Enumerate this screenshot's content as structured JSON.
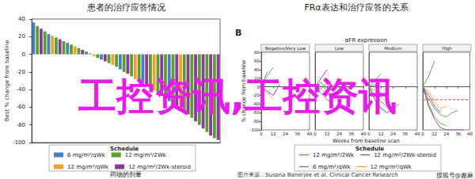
{
  "chart_data": [
    {
      "type": "bar",
      "title": "患者的治疗应答情况",
      "ylabel": "Best % change from baseline",
      "xlabel": "药物的剂量",
      "annotations": [
        "Schedule"
      ],
      "categories": [
        null,
        null,
        null,
        null,
        null,
        null,
        null,
        null,
        null,
        null,
        null,
        null,
        null,
        null,
        null,
        null,
        null,
        null,
        null,
        null,
        null,
        null,
        null,
        null,
        null,
        null,
        null,
        null,
        null,
        null,
        null,
        null,
        null,
        null,
        null,
        null,
        null,
        null,
        null,
        null,
        null,
        null,
        null,
        null,
        null,
        null,
        null,
        null,
        null,
        null
      ],
      "series": [
        {
          "name": "6 mg/m²/qWk",
          "color": "#4a7ebb",
          "values": [
            36,
            null,
            null,
            null,
            23,
            null,
            null,
            null,
            null,
            13,
            null,
            null,
            null,
            null,
            3,
            null,
            null,
            null,
            -6,
            null,
            null,
            null,
            null,
            -17,
            null,
            null,
            null,
            null,
            null,
            -33,
            null,
            null,
            null,
            null,
            null,
            null,
            -53,
            null,
            null,
            null,
            null,
            null,
            null,
            null,
            null,
            null,
            null,
            null,
            null,
            null
          ]
        },
        {
          "name": "12 mg/m²/2Wk",
          "color": "#5b9e2f",
          "values": [
            null,
            32,
            null,
            26,
            null,
            null,
            19,
            null,
            15,
            null,
            11,
            null,
            7,
            null,
            null,
            1,
            null,
            -4,
            null,
            null,
            -10,
            null,
            -14,
            null,
            -20,
            null,
            -25,
            null,
            -30,
            null,
            null,
            -38,
            null,
            -44,
            null,
            -50,
            null,
            -56,
            null,
            null,
            -65,
            null,
            -72,
            null,
            -80,
            null,
            -88,
            null,
            -95,
            null
          ]
        },
        {
          "name": "12 mg/m²/qWk",
          "color": "#f0a030",
          "values": [
            null,
            null,
            null,
            null,
            null,
            21,
            null,
            null,
            null,
            null,
            null,
            9,
            null,
            null,
            null,
            null,
            -2,
            null,
            null,
            null,
            null,
            -12,
            null,
            null,
            null,
            null,
            null,
            -28,
            null,
            null,
            null,
            null,
            -41,
            null,
            null,
            null,
            null,
            null,
            null,
            -62,
            null,
            null,
            null,
            null,
            null,
            null,
            null,
            null,
            null,
            null
          ]
        },
        {
          "name": "12 mg/m²/2Wk-steroid",
          "color": "#8a3a9a",
          "values": [
            null,
            null,
            29,
            null,
            null,
            null,
            null,
            17,
            null,
            null,
            null,
            null,
            null,
            5,
            null,
            null,
            null,
            null,
            null,
            -8,
            null,
            null,
            null,
            null,
            null,
            -22,
            null,
            null,
            null,
            null,
            -36,
            null,
            null,
            null,
            -47,
            null,
            null,
            null,
            -59,
            null,
            null,
            -68,
            null,
            -76,
            null,
            -84,
            null,
            -92,
            null,
            -97
          ]
        }
      ],
      "ylim": [
        -100,
        40
      ],
      "yticks": [
        -100,
        -80,
        -60,
        -40,
        -20,
        0,
        20,
        40
      ],
      "grid": false,
      "tick_labels": "y",
      "legend": "bottom"
    },
    {
      "type": "line",
      "title": "FRα表达和治疗应答的关系",
      "subtitle": "αFR expression",
      "xlabel": "Weeks from baseline scan",
      "ylabel": "% change from baseline",
      "annotations": [
        "B",
        "Schedule"
      ],
      "xlim": [
        0,
        48
      ],
      "xticks": [
        0,
        12,
        24,
        36,
        48
      ],
      "ylim": [
        -100,
        80
      ],
      "yticks": [
        -100,
        -80,
        -60,
        -40,
        -20,
        0,
        20,
        40,
        60,
        80
      ],
      "grid": false,
      "legend": "bottom",
      "panels": [
        {
          "title": "Negative/Very Low",
          "series": [
            {
              "name": "12 mg/m²/2Wk",
              "color": "#5b9e2f",
              "x": [
                0,
                6,
                12
              ],
              "values": [
                0,
                25,
                45
              ]
            },
            {
              "name": "12 mg/m²/2Wk-steroid",
              "color": "#8a3a9a",
              "x": [
                0,
                6,
                12,
                18
              ],
              "values": [
                0,
                -10,
                -20,
                5
              ]
            },
            {
              "name": "6 mg/m²/qWk",
              "color": "#4a7ebb",
              "x": [
                0,
                6
              ],
              "values": [
                0,
                35
              ]
            },
            {
              "name": "12 mg/m²/qWk",
              "color": "#f0a030",
              "x": [
                0,
                6,
                12
              ],
              "values": [
                0,
                -15,
                -30
              ]
            }
          ]
        },
        {
          "title": "Low",
          "series": [
            {
              "name": "12 mg/m²/2Wk",
              "color": "#5b9e2f",
              "x": [
                0,
                6,
                12,
                18,
                24
              ],
              "values": [
                0,
                10,
                -10,
                -25,
                -20
              ]
            },
            {
              "name": "12 mg/m²/2Wk",
              "color": "#5b9e2f",
              "x": [
                0,
                6,
                12,
                18
              ],
              "values": [
                0,
                -15,
                -30,
                -40
              ]
            },
            {
              "name": "12 mg/m²/2Wk-steroid",
              "color": "#8a3a9a",
              "x": [
                0,
                6,
                12
              ],
              "values": [
                0,
                20,
                40
              ]
            },
            {
              "name": "6 mg/m²/qWk",
              "color": "#4a7ebb",
              "x": [
                0,
                6,
                12
              ],
              "values": [
                0,
                -5,
                10
              ]
            }
          ]
        },
        {
          "title": "Medium",
          "series": [
            {
              "name": "12 mg/m²/2Wk",
              "color": "#5b9e2f",
              "x": [
                0,
                6,
                12,
                18,
                24,
                30
              ],
              "values": [
                0,
                -20,
                -35,
                -45,
                -50,
                -40
              ]
            },
            {
              "name": "12 mg/m²/2Wk",
              "color": "#5b9e2f",
              "x": [
                0,
                6,
                12
              ],
              "values": [
                0,
                15,
                30
              ]
            },
            {
              "name": "12 mg/m²/2Wk-steroid",
              "color": "#8a3a9a",
              "x": [
                0,
                6,
                12,
                18,
                24
              ],
              "values": [
                0,
                -30,
                -50,
                -60,
                -55
              ]
            },
            {
              "name": "12 mg/m²/qWk",
              "color": "#f0a030",
              "x": [
                0,
                6,
                12,
                18
              ],
              "values": [
                0,
                -10,
                -25,
                -35
              ]
            },
            {
              "name": "6 mg/m²/qWk",
              "color": "#4a7ebb",
              "x": [
                0,
                6,
                12
              ],
              "values": [
                0,
                5,
                -15
              ]
            }
          ]
        },
        {
          "title": "High",
          "series": [
            {
              "name": "12 mg/m²/2Wk",
              "color": "#5b9e2f",
              "x": [
                0,
                6,
                12,
                18,
                24,
                30,
                36
              ],
              "values": [
                0,
                -30,
                -50,
                -65,
                -70,
                -60,
                -55
              ]
            },
            {
              "name": "12 mg/m²/2Wk",
              "color": "#5b9e2f",
              "x": [
                0,
                6,
                12,
                18,
                24
              ],
              "values": [
                0,
                -40,
                -70,
                -85,
                -90
              ]
            },
            {
              "name": "12 mg/m²/2Wk-steroid",
              "color": "#8a3a9a",
              "x": [
                0,
                6,
                12,
                18,
                24,
                30,
                36,
                42
              ],
              "values": [
                0,
                -45,
                -75,
                -95,
                -100,
                -100,
                -100,
                -100
              ]
            },
            {
              "name": "12 mg/m²/2Wk-steroid",
              "color": "#8a3a9a",
              "x": [
                0,
                6,
                12,
                18
              ],
              "values": [
                0,
                -20,
                -45,
                -60
              ]
            },
            {
              "name": "12 mg/m²/2Wk",
              "color": "#5b9e2f",
              "x": [
                0,
                6,
                12
              ],
              "values": [
                0,
                25,
                60
              ]
            },
            {
              "name": "12 mg/m²/qWk",
              "color": "#f0a030",
              "x": [
                0,
                6,
                12,
                18,
                24
              ],
              "values": [
                0,
                -10,
                -35,
                -50,
                -45
              ]
            },
            {
              "color": "#e03030",
              "line_style": "dashed",
              "x": [
                0,
                48
              ],
              "values": [
                -30,
                -30
              ]
            }
          ]
        }
      ]
    }
  ],
  "annotations": [
    "工控资讯,工控资讯",
    "图片来源：Susana Banerjee et al, Clinical Cancer Research",
    "搜狐号@趣麻"
  ]
}
